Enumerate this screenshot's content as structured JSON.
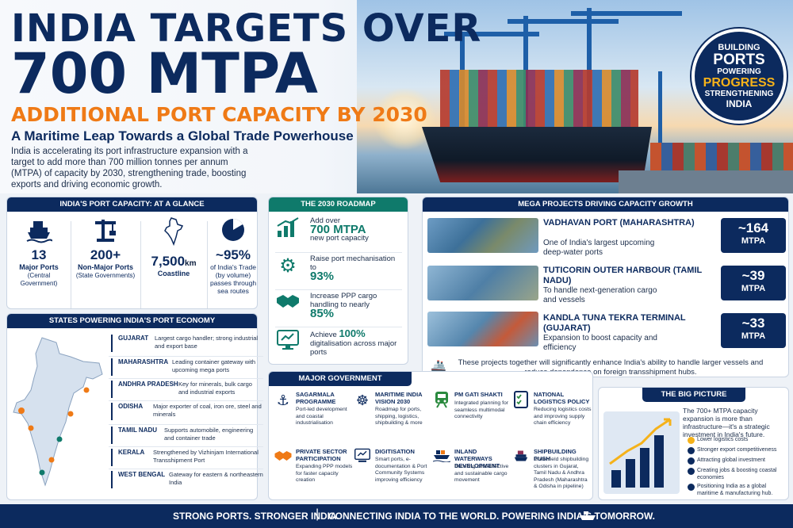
{
  "hero": {
    "title_line1": "INDIA TARGETS OVER",
    "title_line2": "700 MTPA",
    "title_line3": "ADDITIONAL PORT CAPACITY BY 2030",
    "subtitle": "A Maritime Leap Towards a Global Trade Powerhouse",
    "intro": "India is accelerating its port infrastructure expansion with a target to add more than 700 million tonnes per annum (MTPA) of capacity by 2030, strengthening trade, boosting exports and driving economic growth.",
    "badge": {
      "l1": "BUILDING",
      "l2": "PORTS",
      "l3": "POWERING",
      "l4": "PROGRESS",
      "l5": "STRENGTHENING",
      "l6": "INDIA"
    }
  },
  "glance": {
    "heading": "INDIA'S PORT CAPACITY: AT A GLANCE",
    "items": [
      {
        "icon": "ship-icon",
        "num": "13",
        "label": "Major Ports",
        "sub": "(Central Government)"
      },
      {
        "icon": "crane-icon",
        "num": "200+",
        "label": "Non-Major Ports",
        "sub": "(State Governments)"
      },
      {
        "icon": "india-map-icon",
        "num": "7,500",
        "unit": "km",
        "label": "Coastline",
        "sub": ""
      },
      {
        "icon": "pie-chart-icon",
        "num": "~95%",
        "label": "of India's Trade (by volume) passes through sea routes",
        "sub": ""
      }
    ]
  },
  "states": {
    "heading": "STATES POWERING INDIA'S PORT ECONOMY",
    "items": [
      {
        "name": "GUJARAT",
        "desc": "Largest cargo handler; strong industrial and export base"
      },
      {
        "name": "MAHARASHTRA",
        "desc": "Leading container gateway with upcoming mega ports"
      },
      {
        "name": "ANDHRA PRADESH",
        "desc": "Key for minerals, bulk cargo and industrial exports"
      },
      {
        "name": "ODISHA",
        "desc": "Major exporter of coal, iron ore, steel and minerals"
      },
      {
        "name": "TAMIL NADU",
        "desc": "Supports automobile, engineering and container trade"
      },
      {
        "name": "KERALA",
        "desc": "Strengthened by Vizhinjam International Transshipment Port"
      },
      {
        "name": "WEST BENGAL",
        "desc": "Gateway for eastern & northeastern India"
      }
    ]
  },
  "roadmap": {
    "heading": "THE 2030 ROADMAP",
    "items": [
      {
        "icon": "growth-chart-icon",
        "pre": "Add over",
        "big": "700 MTPA",
        "post": "new port capacity"
      },
      {
        "icon": "gear-icon",
        "pre": "Raise port mechanisation to",
        "big": "93%",
        "post": ""
      },
      {
        "icon": "handshake-icon",
        "pre": "Increase PPP cargo handling to nearly",
        "big": "85%",
        "post": ""
      },
      {
        "icon": "monitor-icon",
        "pre": "Achieve",
        "big": "100%",
        "post": "digitalisation across major ports"
      }
    ]
  },
  "mega": {
    "heading": "MEGA PROJECTS DRIVING CAPACITY GROWTH",
    "items": [
      {
        "name": "VADHAVAN PORT (MAHARASHTRA)",
        "desc": "One of India's largest upcoming deep-water ports",
        "value": "~164",
        "unit": "MTPA"
      },
      {
        "name": "TUTICORIN OUTER HARBOUR (TAMIL NADU)",
        "desc": "To handle next-generation cargo and vessels",
        "value": "~39",
        "unit": "MTPA"
      },
      {
        "name": "KANDLA TUNA TEKRA TERMINAL (GUJARAT)",
        "desc": "Expansion to boost capacity and efficiency",
        "value": "~33",
        "unit": "MTPA"
      }
    ],
    "footer": "These projects together will significantly enhance India's ability to handle larger vessels and reduce dependence on foreign transshipment hubs."
  },
  "gov": {
    "heading": "MAJOR GOVERNMENT",
    "items": [
      {
        "icon": "anchor-icon",
        "title": "SAGARMALA PROGRAMME",
        "desc": "Port-led development and coastal industrialisation"
      },
      {
        "icon": "ship-wheel-icon",
        "title": "MARITIME INDIA VISION 2030",
        "desc": "Roadmap for ports, shipping, logistics, shipbuilding & more"
      },
      {
        "icon": "train-icon",
        "title": "PM GATI SHAKTI",
        "desc": "Integrated planning for seamless multimodal connectivity"
      },
      {
        "icon": "checklist-icon",
        "title": "NATIONAL LOGISTICS POLICY",
        "desc": "Reducing logistics costs and improving supply chain efficiency"
      },
      {
        "icon": "handshake-icon",
        "title": "PRIVATE SECTOR PARTICIPATION",
        "desc": "Expanding PPP models for faster capacity creation"
      },
      {
        "icon": "chart-screen-icon",
        "title": "DIGITISATION",
        "desc": "Smart ports, e-documentation & Port Community Systems improving efficiency"
      },
      {
        "icon": "barge-icon",
        "title": "INLAND WATERWAYS DEVELOPMENT",
        "desc": "Boosting cost-effective and sustainable cargo movement"
      },
      {
        "icon": "ship-icon",
        "title": "SHIPBUILDING PUSH",
        "desc": "Greenfield shipbuilding clusters in Gujarat, Tamil Nadu & Andhra Pradesh (Maharashtra & Odisha in pipeline)"
      }
    ]
  },
  "bigpicture": {
    "heading": "THE BIG PICTURE",
    "lead": "The 700+ MTPA capacity expansion is more than infrastructure—it's a strategic investment in India's future.",
    "items": [
      "Lower logistics costs",
      "Stronger export competitiveness",
      "Attracting global investment",
      "Creating jobs & boosting coastal economies",
      "Positioning India as a global maritime & manufacturing hub."
    ]
  },
  "footer": {
    "left": "STRONG PORTS. STRONGER INDIA.",
    "divider": "|",
    "right": "CONNECTING INDIA TO THE WORLD. POWERING INDIA'S TOMORROW."
  },
  "colors": {
    "navy": "#0c2a5e",
    "orange": "#ef7a16",
    "teal": "#0f7a6b",
    "gold": "#f5b21a"
  }
}
